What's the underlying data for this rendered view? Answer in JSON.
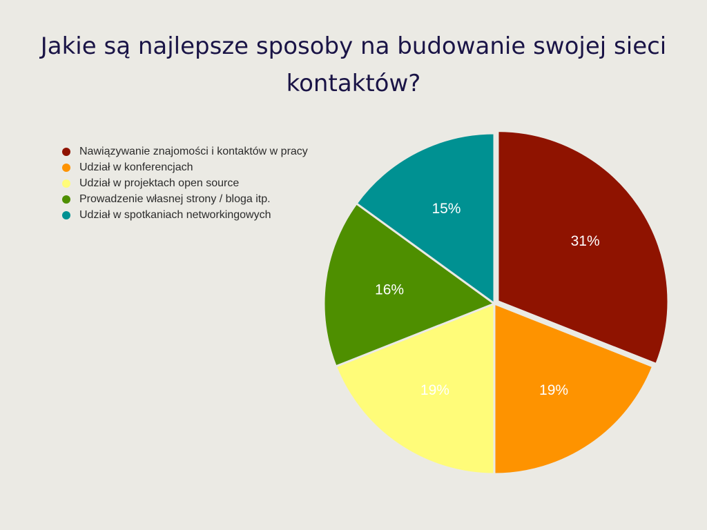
{
  "title": "Jakie są najlepsze sposoby na budowanie swojej sieci kontaktów?",
  "chart_data": {
    "type": "pie",
    "title": "Jakie są najlepsze sposoby na budowanie swojej sieci kontaktów?",
    "legend_position": "left",
    "series": [
      {
        "values": [
          31,
          19,
          19,
          16,
          15
        ]
      }
    ],
    "categories": [
      "Nawiązywanie znajomości i kontaktów w pracy",
      "Udział w konferencjach",
      "Udział w projektach open source",
      "Prowadzenie własnej strony / bloga itp.",
      "Udział w spotkaniach networkingowych"
    ],
    "labels": [
      "31%",
      "19%",
      "19%",
      "16%",
      "15%"
    ],
    "colors": [
      "#8f1300",
      "#fe9300",
      "#fffc79",
      "#4e8f00",
      "#009192"
    ],
    "exploded": [
      "Nawiązywanie znajomości i kontaktów w pracy"
    ]
  }
}
